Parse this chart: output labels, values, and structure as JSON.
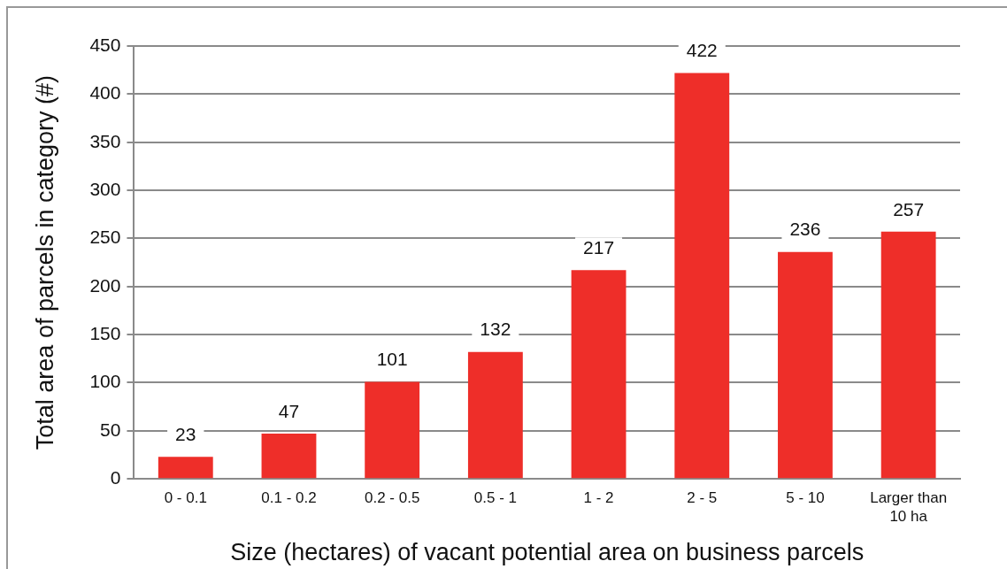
{
  "chart_data": {
    "type": "bar",
    "xlabel": "Size (hectares) of vacant potential area on business parcels",
    "ylabel": "Total area of parcels in category (#)",
    "categories": [
      "0 - 0.1",
      "0.1 - 0.2",
      "0.2 - 0.5",
      "0.5 - 1",
      "1 - 2",
      "2 - 5",
      "5 - 10",
      "Larger than 10 ha"
    ],
    "values": [
      23,
      47,
      101,
      132,
      217,
      422,
      236,
      257
    ],
    "color": "#ee2e29",
    "ylim": [
      0,
      450
    ],
    "yticks": [
      0,
      50,
      100,
      150,
      200,
      250,
      300,
      350,
      400,
      450
    ],
    "grid": "y",
    "data_labels": true
  }
}
